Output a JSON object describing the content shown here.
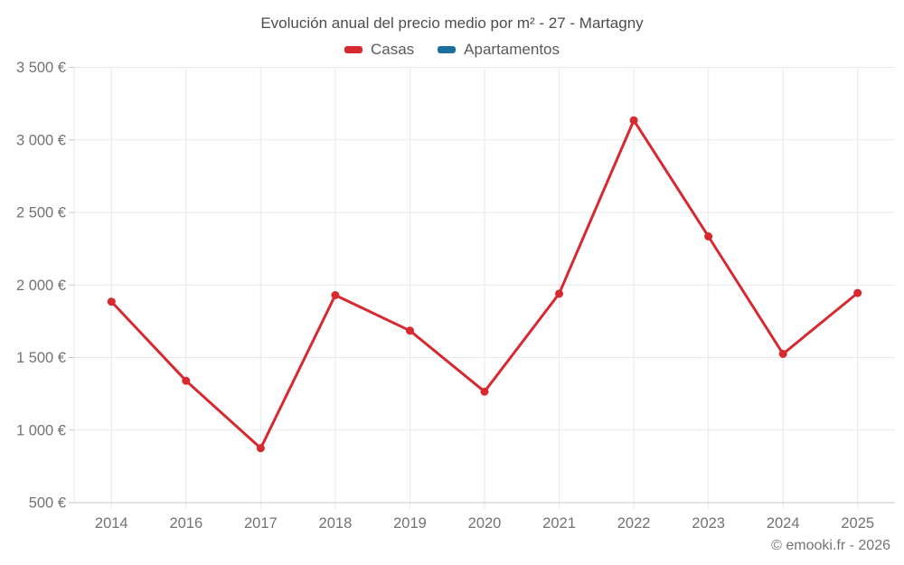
{
  "chart": {
    "title": "Evolución anual del precio medio por m² - 27 - Martagny"
  },
  "legend": {
    "items": [
      {
        "label": "Casas",
        "color": "#d62930"
      },
      {
        "label": "Apartamentos",
        "color": "#1a6f9e"
      }
    ]
  },
  "footer": {
    "credit": "© emooki.fr - 2026"
  },
  "colors": {
    "grid": "#e9e9e9",
    "axis": "#c9c9c9",
    "title_text": "#4d4d4d",
    "tick_text": "#737373",
    "casas_red": "#d62930",
    "apartamentos_blue": "#1a6f9e"
  },
  "chart_data": {
    "type": "line",
    "title": "Evolución anual del precio medio por m² - 27 - Martagny",
    "xlabel": "",
    "ylabel": "",
    "categories": [
      "2014",
      "2016",
      "2017",
      "2018",
      "2019",
      "2020",
      "2021",
      "2022",
      "2023",
      "2024",
      "2025"
    ],
    "series": [
      {
        "name": "Casas",
        "color": "#d62930",
        "values": [
          1885,
          1340,
          875,
          1930,
          1685,
          1265,
          1940,
          3135,
          2335,
          1525,
          1945
        ]
      },
      {
        "name": "Apartamentos",
        "color": "#1a6f9e",
        "values": []
      }
    ],
    "ylim": [
      500,
      3500
    ],
    "ytick_step": 500,
    "ytick_labels": [
      "500 €",
      "1 000 €",
      "1 500 €",
      "2 000 €",
      "2 500 €",
      "3 000 €",
      "3 500 €"
    ],
    "grid": true,
    "legend_position": "top",
    "marker": "circle"
  }
}
